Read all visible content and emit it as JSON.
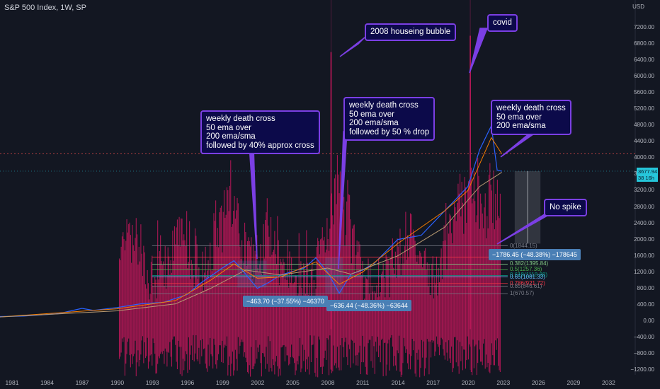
{
  "header": {
    "title": "S&P 500 Index, 1W, SP",
    "currency": "USD"
  },
  "price_tag": {
    "value": "3677.94",
    "sub": "38 16h"
  },
  "annotations": {
    "bubble_2008": "2008 houseing bubble",
    "covid": "covid",
    "cross_2000": "weekly death cross\n50 ema over\n200 ema/sma\nfollowed by 40% approx cross",
    "cross_2008": "weekly death cross\n50 ema over\n200 ema/sma\nfollowed by 50 % drop",
    "cross_2022": "weekly death cross\n50 ema over\n200 ema/sma",
    "no_spike": "No spike"
  },
  "measure_labels": {
    "m2000": "−463.70 (−37.55%) −46370",
    "m2008": "−636.44 (−48.36%) −63644",
    "m2022": "−1786.45 (−48.38%) −178645"
  },
  "colors": {
    "background": "#131722",
    "price_line": "#2962ff",
    "ema50": "#f57c00",
    "sma200": "#b89a72",
    "indicator": "#c2185b",
    "annotation_border": "#7b3fe4",
    "annotation_fill": "#0c0a4a",
    "fib_levels": [
      "#787b86",
      "#f23645",
      "#81c784",
      "#4caf50",
      "#089981",
      "#64b5f6",
      "#f23645",
      "#787b86"
    ]
  },
  "chart_data": {
    "type": "line",
    "title": "S&P 500 Index, 1W, SP",
    "y_axis_ticks": [
      -1200,
      -800,
      -400,
      0,
      400,
      800,
      1200,
      1600,
      2000,
      2400,
      2800,
      3200,
      3600,
      4000,
      4400,
      4800,
      5200,
      5600,
      6000,
      6400,
      6800,
      7200
    ],
    "x_axis_ticks": [
      "1981",
      "1984",
      "1987",
      "1990",
      "1993",
      "1996",
      "1999",
      "2002",
      "2005",
      "2008",
      "2011",
      "2014",
      "2017",
      "2020",
      "2023",
      "2026",
      "2029",
      "2032"
    ],
    "series": [
      {
        "name": "S&P 500",
        "x": [
          1980,
          1982,
          1985,
          1987,
          1988,
          1990,
          1992,
          1994,
          1996,
          1997,
          1998,
          1999,
          2000,
          2001,
          2002,
          2003,
          2004,
          2006,
          2007,
          2008,
          2009,
          2010,
          2011,
          2012,
          2014,
          2016,
          2018,
          2019,
          2020,
          2021,
          2022,
          2022.5,
          2022.9
        ],
        "y": [
          110,
          120,
          180,
          310,
          260,
          330,
          420,
          460,
          650,
          900,
          1100,
          1300,
          1480,
          1150,
          800,
          950,
          1130,
          1300,
          1550,
          1200,
          680,
          1150,
          1250,
          1420,
          2000,
          2100,
          2700,
          3000,
          3300,
          4200,
          4790,
          3700,
          3677
        ]
      },
      {
        "name": "EMA 50",
        "x": [
          1980,
          1990,
          1995,
          1998,
          2000,
          2002,
          2004,
          2007,
          2009,
          2011,
          2014,
          2018,
          2020,
          2022,
          2022.9
        ],
        "y": [
          100,
          300,
          500,
          1000,
          1400,
          1050,
          1080,
          1450,
          900,
          1200,
          1900,
          2700,
          3200,
          4500,
          4100
        ]
      },
      {
        "name": "SMA 200",
        "x": [
          1980,
          1990,
          1995,
          1998,
          2001,
          2004,
          2008,
          2010,
          2014,
          2018,
          2021,
          2022.9
        ],
        "y": [
          100,
          250,
          420,
          800,
          1250,
          1130,
          1300,
          1150,
          1600,
          2300,
          3300,
          3650
        ]
      }
    ],
    "fib_levels": [
      {
        "label": "0(1844.15)",
        "value": 1844.15
      },
      {
        "label": "0.236(1567.19)",
        "value": 1567.19
      },
      {
        "label": "0.382(1395.84)",
        "value": 1395.84
      },
      {
        "label": "0.5(1257.36)",
        "value": 1257.36
      },
      {
        "label": "0.618(1118.88)",
        "value": 1118.88
      },
      {
        "label": "0.65(1081.33)",
        "value": 1081.33
      },
      {
        "label": "0.786(921.72)",
        "value": 921.72
      },
      {
        "label": "0.85(846.61)",
        "value": 846.61
      },
      {
        "label": "1(670.57)",
        "value": 670.57
      }
    ],
    "spikes": [
      {
        "x": 2008.3,
        "y": 6600
      },
      {
        "x": 2020.2,
        "y": 7000
      }
    ]
  }
}
